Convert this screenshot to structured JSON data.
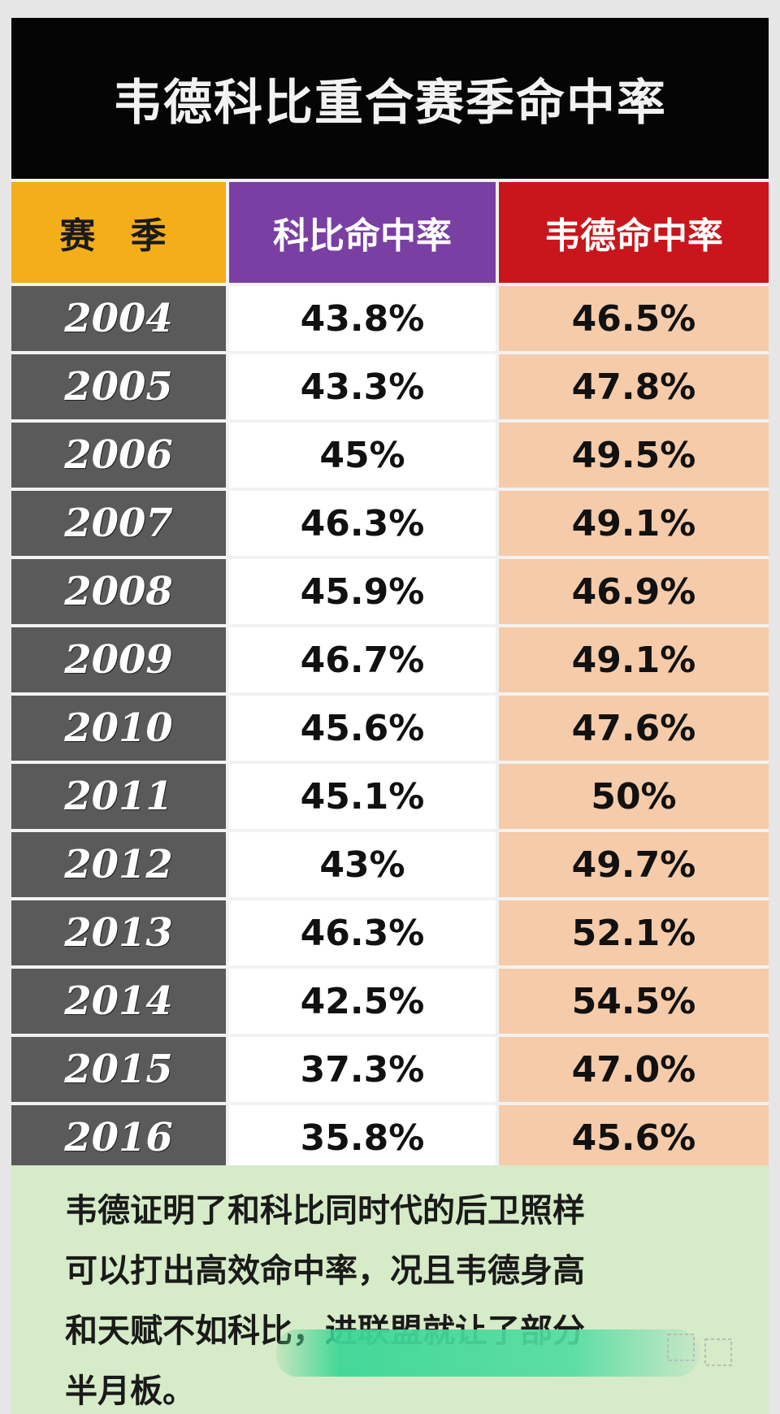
{
  "chart_data": {
    "type": "table",
    "title": "韦德科比重合赛季命中率",
    "columns": [
      "赛 季",
      "科比命中率",
      "韦德命中率"
    ],
    "rows": [
      {
        "season": "2004",
        "kobe": "43.8%",
        "wade": "46.5%"
      },
      {
        "season": "2005",
        "kobe": "43.3%",
        "wade": "47.8%"
      },
      {
        "season": "2006",
        "kobe": "45%",
        "wade": "49.5%"
      },
      {
        "season": "2007",
        "kobe": "46.3%",
        "wade": "49.1%"
      },
      {
        "season": "2008",
        "kobe": "45.9%",
        "wade": "46.9%"
      },
      {
        "season": "2009",
        "kobe": "46.7%",
        "wade": "49.1%"
      },
      {
        "season": "2010",
        "kobe": "45.6%",
        "wade": "47.6%"
      },
      {
        "season": "2011",
        "kobe": "45.1%",
        "wade": "50%"
      },
      {
        "season": "2012",
        "kobe": "43%",
        "wade": "49.7%"
      },
      {
        "season": "2013",
        "kobe": "46.3%",
        "wade": "52.1%"
      },
      {
        "season": "2014",
        "kobe": "42.5%",
        "wade": "54.5%"
      },
      {
        "season": "2015",
        "kobe": "37.3%",
        "wade": "47.0%"
      },
      {
        "season": "2016",
        "kobe": "35.8%",
        "wade": "45.6%"
      }
    ],
    "note_lines": [
      "韦德证明了和科比同时代的后卫照样",
      "可以打出高效命中率，况且韦德身高",
      "和天赋不如科比，进联盟就让了部分",
      "半月板。"
    ]
  },
  "colors": {
    "title_bg": "#050505",
    "season_header": "#f3ae1a",
    "kobe_header": "#7a3fa3",
    "wade_header": "#c8161c",
    "year_cell": "#5a5a5a",
    "wade_cell": "#f6cba9",
    "note_bg": "#d6ebc7"
  }
}
